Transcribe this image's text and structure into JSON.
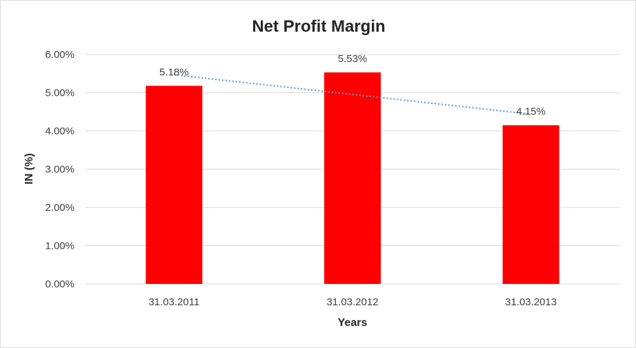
{
  "chart_data": {
    "type": "bar",
    "title": "Net Profit Margin",
    "xlabel": "Years",
    "ylabel": "IN (%)",
    "categories": [
      "31.03.2011",
      "31.03.2012",
      "31.03.2013"
    ],
    "values": [
      5.18,
      5.53,
      4.15
    ],
    "data_labels": [
      "5.18%",
      "5.53%",
      "4.15%"
    ],
    "ylim": [
      0,
      6
    ],
    "y_ticks": [
      0,
      1,
      2,
      3,
      4,
      5,
      6
    ],
    "y_tick_labels": [
      "0.00%",
      "1.00%",
      "2.00%",
      "3.00%",
      "4.00%",
      "5.00%",
      "6.00%"
    ],
    "grid": true,
    "trendline": {
      "type": "linear",
      "style": "dotted"
    },
    "colors": {
      "bar": "#ff0000",
      "trendline": "#5b9bd5",
      "gridline": "#d9d9d9"
    }
  }
}
